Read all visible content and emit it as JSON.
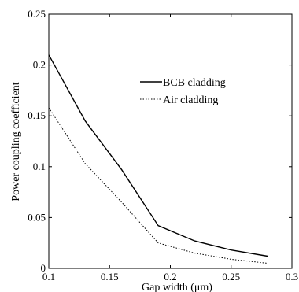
{
  "chart_data": {
    "type": "line",
    "xlabel": "Gap width (μm)",
    "ylabel": "Power coupling coefficient",
    "xlim": [
      0.1,
      0.3
    ],
    "ylim": [
      0,
      0.25
    ],
    "xticks": [
      "0.1",
      "0.15",
      "0.2",
      "0.25",
      "0.3"
    ],
    "yticks": [
      "0",
      "0.05",
      "0.1",
      "0.15",
      "0.2",
      "0.25"
    ],
    "grid": false,
    "legend_position": "top-right",
    "series": [
      {
        "name": "BCB cladding",
        "style": "solid",
        "color": "#000000",
        "x": [
          0.1,
          0.13,
          0.16,
          0.19,
          0.22,
          0.25,
          0.28
        ],
        "y": [
          0.21,
          0.145,
          0.097,
          0.042,
          0.027,
          0.018,
          0.012
        ]
      },
      {
        "name": "Air cladding",
        "style": "dotted",
        "color": "#000000",
        "x": [
          0.1,
          0.13,
          0.16,
          0.19,
          0.22,
          0.25,
          0.28
        ],
        "y": [
          0.158,
          0.103,
          0.065,
          0.025,
          0.015,
          0.009,
          0.005
        ]
      }
    ]
  }
}
